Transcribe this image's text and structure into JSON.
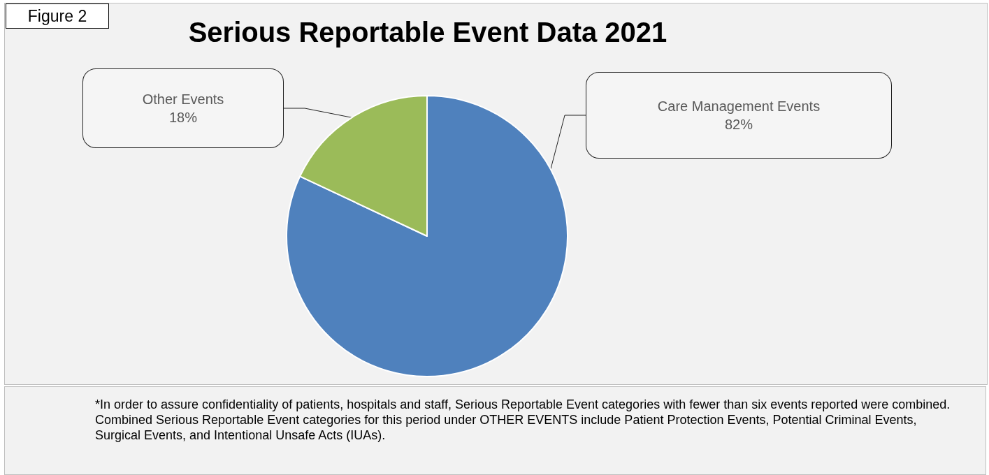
{
  "chart_data": {
    "type": "pie",
    "title": "Serious Reportable Event Data 2021",
    "categories": [
      "Care Management Events",
      "Other Events"
    ],
    "values": [
      82,
      18
    ],
    "colors": [
      "#4f81bd",
      "#9bbb59"
    ],
    "value_labels": [
      "82%",
      "18%"
    ],
    "legend": false,
    "annotations": [
      "Figure 2",
      "*In order to assure confidentiality of patients, hospitals  and staff, Serious Reportable Event categories with fewer than six events reported were combined. Combined Serious Reportable Event categories for  this period under OTHER EVENTS include Patient Protection Events, Potential Criminal Events, Surgical Events, and Intentional Unsafe Acts (IUAs)."
    ]
  }
}
